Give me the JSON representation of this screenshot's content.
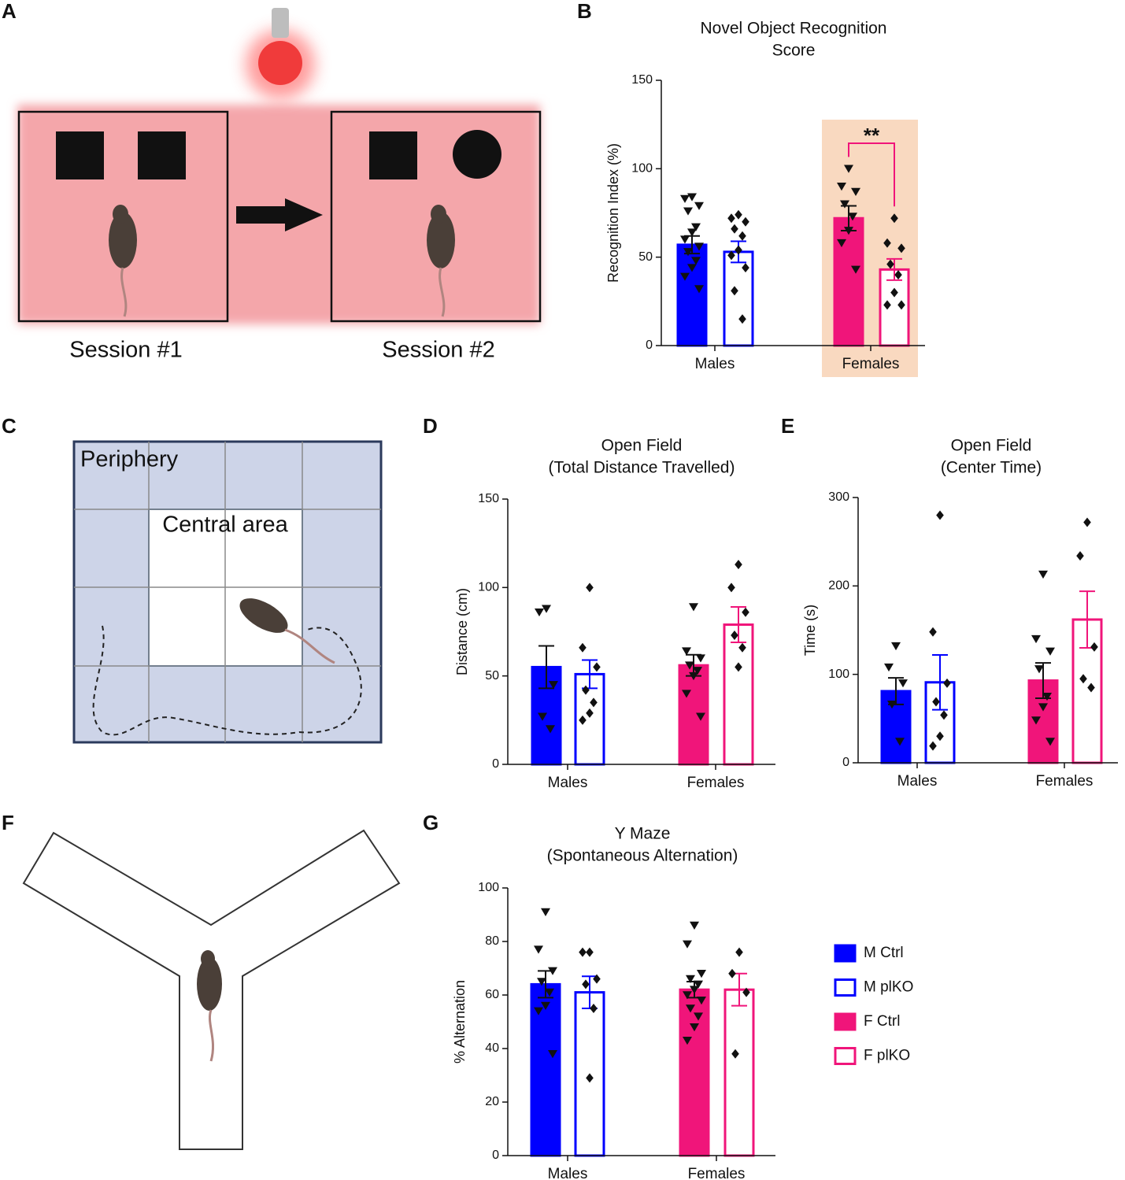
{
  "panels": [
    "A",
    "B",
    "C",
    "D",
    "E",
    "F",
    "G"
  ],
  "diagram_a": {
    "sessions": [
      "Session #1",
      "Session #2"
    ]
  },
  "diagram_c": {
    "labels": [
      "Periphery",
      "Central area"
    ]
  },
  "legend": [
    {
      "name": "M Ctrl",
      "color": "#0000ff",
      "filled": true,
      "marker": "triangle"
    },
    {
      "name": "M plKO",
      "color": "#0000ff",
      "filled": false,
      "marker": "diamond"
    },
    {
      "name": "F Ctrl",
      "color": "#f0157a",
      "filled": true,
      "marker": "triangle"
    },
    {
      "name": "F plKO",
      "color": "#f0157a",
      "filled": false,
      "marker": "diamond"
    }
  ],
  "chart_data": [
    {
      "type": "bar",
      "title": "Novel Object Recognition",
      "subtitle": "Score",
      "ylabel": "Recognition Index (%)",
      "categories": [
        "Males",
        "Females"
      ],
      "ylim": [
        0,
        150
      ],
      "yticks": [
        0,
        50,
        100,
        150
      ],
      "highlight": {
        "category": 1,
        "color": "#f9d9c0"
      },
      "annotation": {
        "text": "**",
        "from": 2,
        "to": 3,
        "color": "#f0157a"
      },
      "bars": [
        {
          "legend": 0,
          "category": 0,
          "mean": 57,
          "sem": 5,
          "points": [
            84,
            83,
            79,
            76,
            67,
            64,
            60,
            56,
            53,
            48,
            44,
            39,
            32
          ]
        },
        {
          "legend": 1,
          "category": 0,
          "mean": 53,
          "sem": 6,
          "points": [
            74,
            72,
            70,
            66,
            62,
            54,
            51,
            44,
            31,
            15
          ]
        },
        {
          "legend": 2,
          "category": 1,
          "mean": 72,
          "sem": 7,
          "points": [
            100,
            90,
            87,
            80,
            73,
            65,
            58,
            43
          ]
        },
        {
          "legend": 3,
          "category": 1,
          "mean": 43,
          "sem": 6,
          "points": [
            72,
            58,
            55,
            46,
            40,
            30,
            23,
            23
          ]
        }
      ]
    },
    {
      "type": "bar",
      "title": "Open Field",
      "subtitle": "(Total Distance Travelled)",
      "ylabel": "Distance (cm)",
      "categories": [
        "Males",
        "Females"
      ],
      "ylim": [
        0,
        150
      ],
      "yticks": [
        0,
        50,
        100,
        150
      ],
      "bars": [
        {
          "legend": 0,
          "category": 0,
          "mean": 55,
          "sem": 12,
          "points": [
            88,
            86,
            45,
            27,
            20
          ]
        },
        {
          "legend": 1,
          "category": 0,
          "mean": 51,
          "sem": 8,
          "points": [
            100,
            66,
            55,
            42,
            35,
            29,
            25
          ]
        },
        {
          "legend": 2,
          "category": 1,
          "mean": 56,
          "sem": 6,
          "points": [
            89,
            64,
            60,
            56,
            53,
            50,
            40,
            27
          ]
        },
        {
          "legend": 3,
          "category": 1,
          "mean": 79,
          "sem": 10,
          "points": [
            113,
            100,
            86,
            73,
            66,
            55
          ]
        }
      ]
    },
    {
      "type": "bar",
      "title": "Open Field",
      "subtitle": "(Center Time)",
      "ylabel": "Time (s)",
      "categories": [
        "Males",
        "Females"
      ],
      "ylim": [
        0,
        300
      ],
      "yticks": [
        0,
        100,
        200,
        300
      ],
      "bars": [
        {
          "legend": 0,
          "category": 0,
          "mean": 81,
          "sem": 15,
          "points": [
            132,
            108,
            90,
            66,
            24
          ]
        },
        {
          "legend": 1,
          "category": 0,
          "mean": 91,
          "sem": 31,
          "points": [
            280,
            148,
            90,
            69,
            54,
            30,
            19
          ]
        },
        {
          "legend": 2,
          "category": 1,
          "mean": 93,
          "sem": 20,
          "points": [
            213,
            140,
            126,
            106,
            75,
            63,
            48,
            24
          ]
        },
        {
          "legend": 3,
          "category": 1,
          "mean": 162,
          "sem": 32,
          "points": [
            272,
            234,
            131,
            95,
            85
          ]
        }
      ]
    },
    {
      "type": "bar",
      "title": "Y Maze",
      "subtitle": "(Spontaneous Alternation)",
      "ylabel": "% Alternation",
      "categories": [
        "Males",
        "Females"
      ],
      "ylim": [
        0,
        100
      ],
      "yticks": [
        0,
        20,
        40,
        60,
        80,
        100
      ],
      "bars": [
        {
          "legend": 0,
          "category": 0,
          "mean": 64,
          "sem": 5,
          "points": [
            91,
            77,
            69,
            65,
            61,
            56,
            54,
            38
          ]
        },
        {
          "legend": 1,
          "category": 0,
          "mean": 61,
          "sem": 6,
          "points": [
            76,
            76,
            66,
            64,
            55,
            29
          ]
        },
        {
          "legend": 2,
          "category": 1,
          "mean": 62,
          "sem": 3,
          "points": [
            86,
            79,
            68,
            66,
            64,
            62,
            60,
            58,
            55,
            52,
            48,
            43
          ]
        },
        {
          "legend": 3,
          "category": 1,
          "mean": 62,
          "sem": 6,
          "points": [
            76,
            68,
            61,
            38
          ]
        }
      ]
    }
  ]
}
